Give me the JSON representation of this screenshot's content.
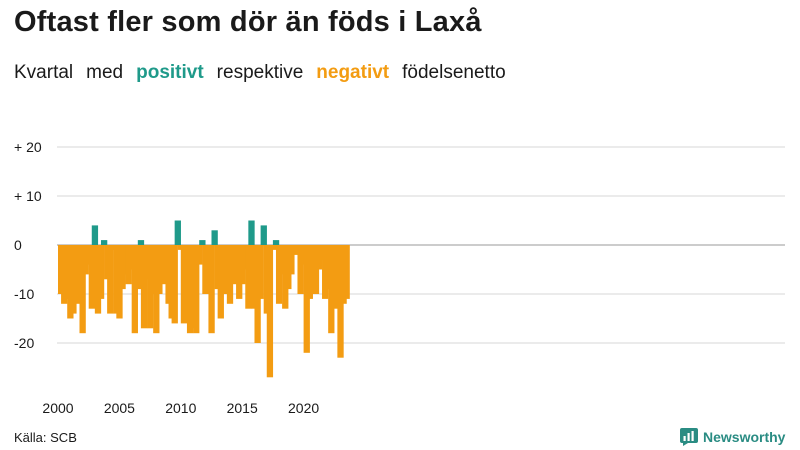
{
  "title": "Oftast fler som dör än föds i Laxå",
  "subtitle": {
    "part1": "Kvartal",
    "part2": "med",
    "positive": "positivt",
    "part3": "respektive",
    "negative": "negativt",
    "part4": "födelsenetto"
  },
  "source": "Källa: SCB",
  "brand": "Newsworthy",
  "colors": {
    "positive": "#1f9a8a",
    "negative": "#f39c12",
    "grid": "#d7d7d7",
    "text": "#1a1a1a"
  },
  "icons": [
    "newsworthy-logo-icon"
  ],
  "chart_data": {
    "type": "bar",
    "x_start": "2000 Q1",
    "x_ticks": [
      "2000",
      "2005",
      "2010",
      "2015",
      "2020"
    ],
    "y_ticks": [
      {
        "value": 20,
        "label": "+ 20"
      },
      {
        "value": 10,
        "label": "+ 10"
      },
      {
        "value": 0,
        "label": "0"
      },
      {
        "value": -10,
        "label": "-10"
      },
      {
        "value": -20,
        "label": "-20"
      }
    ],
    "ylim": [
      -28,
      22
    ],
    "grid": true,
    "values": [
      -10,
      -12,
      -11,
      -15,
      -14,
      -12,
      -6,
      -18,
      -6,
      -4,
      -13,
      4,
      -14,
      -11,
      1,
      -7,
      -14,
      -1,
      -14,
      -15,
      -9,
      -6,
      -8,
      -5,
      -18,
      -9,
      1,
      -17,
      -7,
      -17,
      -10,
      -18,
      -10,
      -7,
      -8,
      -12,
      -15,
      -16,
      5,
      -1,
      -16,
      -4,
      -18,
      -17,
      -18,
      -4,
      1,
      -10,
      -10,
      -18,
      3,
      -9,
      -15,
      -10,
      -8,
      -12,
      -5,
      -8,
      -11,
      -8,
      -5,
      -13,
      5,
      -13,
      -20,
      -11,
      4,
      -14,
      -27,
      -1,
      1,
      -12,
      -6,
      -13,
      -9,
      -6,
      -2,
      -2,
      -10,
      -4,
      -22,
      -11,
      -10,
      -10,
      -5,
      -3,
      -11,
      -9,
      -18,
      -13,
      0,
      -23,
      -12,
      -11
    ]
  }
}
